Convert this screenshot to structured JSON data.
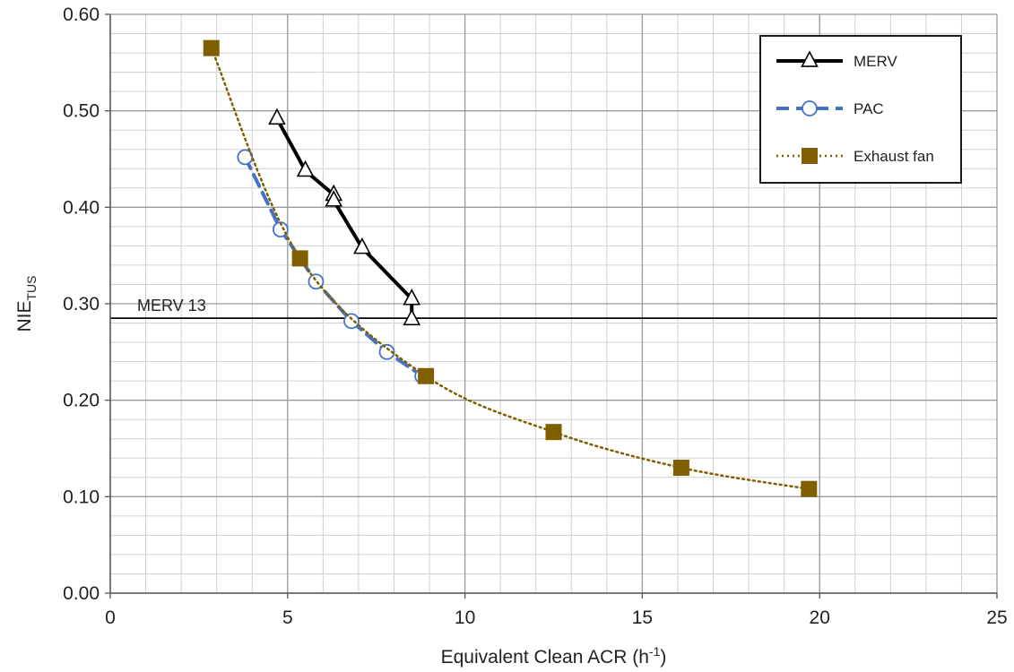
{
  "chart_data": {
    "type": "line",
    "title": "",
    "xlabel": "Equivalent Clean ACR (h",
    "xlabel_sup": "-1",
    "xlabel_close": ")",
    "ylabel": "NIE",
    "ylabel_sub": "TUS",
    "xlim": [
      0,
      25
    ],
    "ylim": [
      0,
      0.6
    ],
    "xticks": [
      0,
      5,
      10,
      15,
      20,
      25
    ],
    "xtick_labels": [
      "0",
      "5",
      "10",
      "15",
      "20",
      "25"
    ],
    "yticks": [
      0,
      0.1,
      0.2,
      0.3,
      0.4,
      0.5,
      0.6
    ],
    "ytick_labels": [
      "0.00",
      "0.10",
      "0.20",
      "0.30",
      "0.40",
      "0.50",
      "0.60"
    ],
    "x_minor_step": 1,
    "y_minor_step": 0.02,
    "grid": true,
    "legend_position": "top-right",
    "series": [
      {
        "name": "MERV",
        "marker": "triangle",
        "line_style": "solid",
        "color": "#000000",
        "x": [
          4.7,
          5.5,
          6.3,
          6.3,
          7.1,
          8.5,
          8.5
        ],
        "y": [
          0.492,
          0.438,
          0.413,
          0.407,
          0.358,
          0.305,
          0.284
        ]
      },
      {
        "name": "PAC",
        "marker": "circle",
        "line_style": "dashed",
        "color": "#4472c4",
        "x": [
          3.8,
          4.8,
          5.8,
          6.8,
          7.8,
          8.8
        ],
        "y": [
          0.452,
          0.377,
          0.323,
          0.282,
          0.25,
          0.225
        ]
      },
      {
        "name": "Exhaust fan",
        "marker": "square",
        "line_style": "dotted",
        "color": "#7f5f00",
        "x": [
          2.85,
          5.35,
          8.9,
          12.5,
          16.1,
          19.7
        ],
        "y": [
          0.565,
          0.347,
          0.225,
          0.167,
          0.13,
          0.108
        ]
      }
    ],
    "reference_line": {
      "label": "MERV 13",
      "y": 0.285
    }
  }
}
